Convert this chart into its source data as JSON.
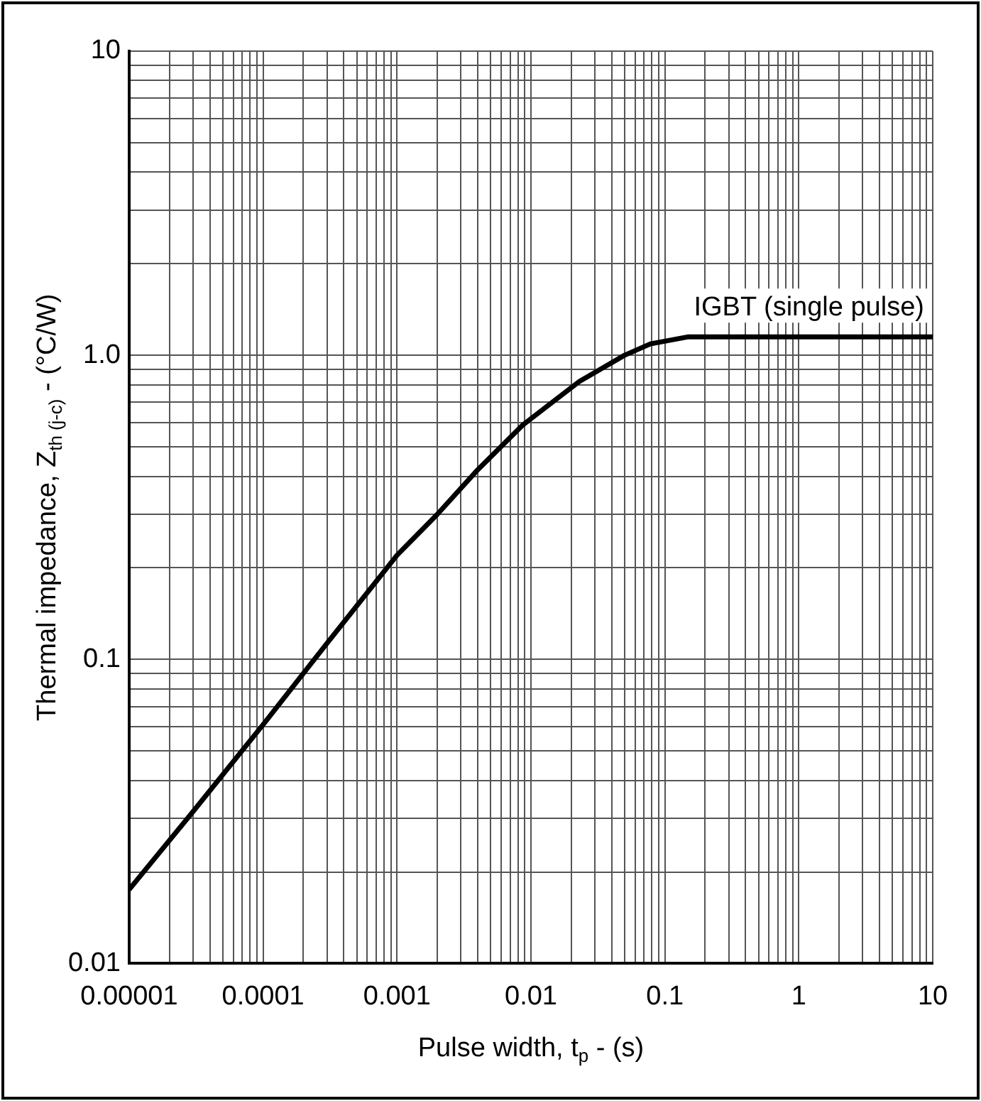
{
  "chart_data": {
    "type": "line",
    "xlabel": "Pulse width, t$_{p}$ - (s)",
    "ylabel": "Thermal impedance, Z$_{th (j-c)}$ - (°C/W)",
    "log": "xy",
    "grid": true,
    "legend": false,
    "marker": "none",
    "line_style": "solid",
    "xlim": [
      1e-05,
      10
    ],
    "ylim": [
      0.01,
      10
    ],
    "xticks": [
      {
        "value": 1e-05,
        "label": "0.00001"
      },
      {
        "value": 2e-05,
        "label": null
      },
      {
        "value": 3e-05,
        "label": null
      },
      {
        "value": 4e-05,
        "label": null
      },
      {
        "value": 5e-05,
        "label": null
      },
      {
        "value": 6e-05,
        "label": null
      },
      {
        "value": 7e-05,
        "label": null
      },
      {
        "value": 8e-05,
        "label": null
      },
      {
        "value": 9e-05,
        "label": null
      },
      {
        "value": 0.0001,
        "label": "0.0001"
      },
      {
        "value": 0.0002,
        "label": null
      },
      {
        "value": 0.0003,
        "label": null
      },
      {
        "value": 0.0004,
        "label": null
      },
      {
        "value": 0.0005,
        "label": null
      },
      {
        "value": 0.0006,
        "label": null
      },
      {
        "value": 0.0007,
        "label": null
      },
      {
        "value": 0.0008,
        "label": null
      },
      {
        "value": 0.0009,
        "label": null
      },
      {
        "value": 0.001,
        "label": "0.001"
      },
      {
        "value": 0.002,
        "label": null
      },
      {
        "value": 0.003,
        "label": null
      },
      {
        "value": 0.004,
        "label": null
      },
      {
        "value": 0.005,
        "label": null
      },
      {
        "value": 0.006,
        "label": null
      },
      {
        "value": 0.007,
        "label": null
      },
      {
        "value": 0.008,
        "label": null
      },
      {
        "value": 0.009,
        "label": null
      },
      {
        "value": 0.01,
        "label": "0.01"
      },
      {
        "value": 0.02,
        "label": null
      },
      {
        "value": 0.03,
        "label": null
      },
      {
        "value": 0.04,
        "label": null
      },
      {
        "value": 0.05,
        "label": null
      },
      {
        "value": 0.06,
        "label": null
      },
      {
        "value": 0.07,
        "label": null
      },
      {
        "value": 0.08,
        "label": null
      },
      {
        "value": 0.09,
        "label": null
      },
      0.1,
      {
        "value": 0.2,
        "label": null
      },
      {
        "value": 0.3,
        "label": null
      },
      {
        "value": 0.4,
        "label": null
      },
      {
        "value": 0.5,
        "label": null
      },
      {
        "value": 0.6,
        "label": null
      },
      {
        "value": 0.7,
        "label": null
      },
      {
        "value": 0.8,
        "label": null
      },
      {
        "value": 0.9,
        "label": null
      },
      1,
      {
        "value": 2,
        "label": null
      },
      {
        "value": 3,
        "label": null
      },
      {
        "value": 4,
        "label": null
      },
      {
        "value": 5,
        "label": null
      },
      {
        "value": 6,
        "label": null
      },
      {
        "value": 7,
        "label": null
      },
      {
        "value": 8,
        "label": null
      },
      {
        "value": 9,
        "label": null
      },
      10
    ],
    "yticks": [
      {
        "value": 0.01,
        "label": "0.01"
      },
      {
        "value": 0.02,
        "label": null
      },
      {
        "value": 0.03,
        "label": null
      },
      {
        "value": 0.04,
        "label": null
      },
      {
        "value": 0.05,
        "label": null
      },
      {
        "value": 0.06,
        "label": null
      },
      {
        "value": 0.07,
        "label": null
      },
      {
        "value": 0.08,
        "label": null
      },
      {
        "value": 0.09,
        "label": null
      },
      0.1,
      {
        "value": 0.2,
        "label": null
      },
      {
        "value": 0.3,
        "label": null
      },
      {
        "value": 0.4,
        "label": null
      },
      {
        "value": 0.5,
        "label": null
      },
      {
        "value": 0.6,
        "label": null
      },
      {
        "value": 0.7,
        "label": null
      },
      {
        "value": 0.8,
        "label": null
      },
      {
        "value": 0.9,
        "label": null
      },
      {
        "value": 1,
        "label": "1.0"
      },
      {
        "value": 2,
        "label": null
      },
      {
        "value": 3,
        "label": null
      },
      {
        "value": 4,
        "label": null
      },
      {
        "value": 5,
        "label": null
      },
      {
        "value": 6,
        "label": null
      },
      {
        "value": 7,
        "label": null
      },
      {
        "value": 8,
        "label": null
      },
      {
        "value": 9,
        "label": null
      },
      10
    ],
    "series": [
      {
        "name": "IGBT (single pulse)",
        "color": "#000000",
        "x": [
          1e-05,
          3e-05,
          0.0001,
          0.0003,
          0.001,
          0.002,
          0.004,
          0.0087,
          0.023,
          0.05,
          0.078,
          0.15,
          10
        ],
        "values": [
          0.0175,
          0.0316,
          0.061,
          0.113,
          0.22,
          0.3,
          0.42,
          0.59,
          0.82,
          1.0,
          1.09,
          1.15,
          1.15
        ]
      }
    ]
  }
}
